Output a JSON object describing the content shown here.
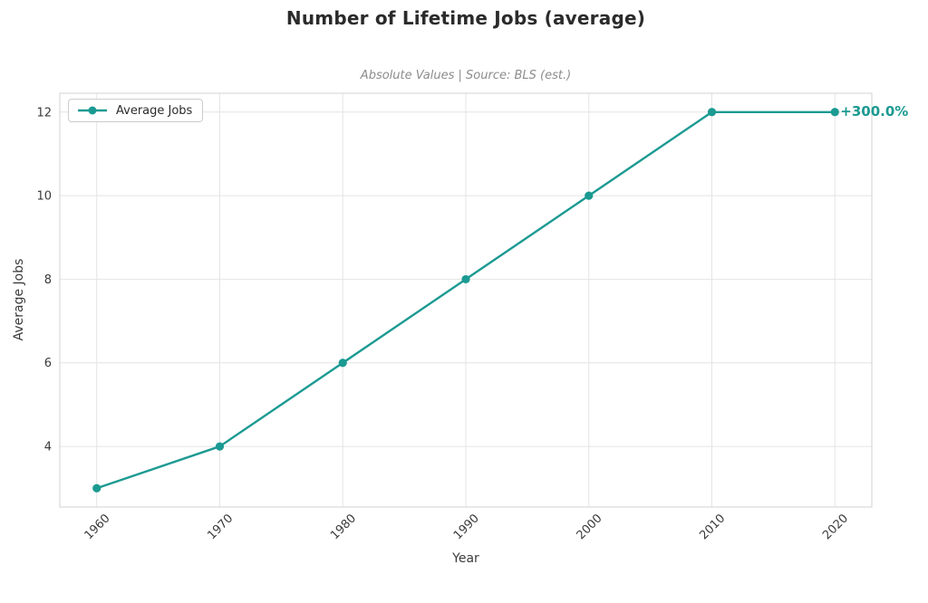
{
  "chart_data": {
    "type": "line",
    "title": "Number of Lifetime Jobs (average)",
    "subtitle": "Absolute Values | Source: BLS (est.)",
    "xlabel": "Year",
    "ylabel": "Average Jobs",
    "x": [
      1960,
      1970,
      1980,
      1990,
      2000,
      2010,
      2020
    ],
    "series": [
      {
        "name": "Average Jobs",
        "values": [
          3,
          4,
          6,
          8,
          10,
          12,
          12
        ],
        "color": "#1b9a92"
      }
    ],
    "xticks": [
      1960,
      1970,
      1980,
      1990,
      2000,
      2010,
      2020
    ],
    "yticks": [
      4,
      6,
      8,
      10,
      12
    ],
    "xlim": [
      1957,
      2023
    ],
    "ylim": [
      2.55,
      12.45
    ],
    "grid": true,
    "legend": {
      "position": "upper-left",
      "entries": [
        "Average Jobs"
      ]
    },
    "annotation": {
      "text": "+300.0%",
      "x": 2020,
      "y": 12,
      "color": "#1b9a92"
    }
  },
  "colors": {
    "line": "#1b9a92",
    "grid": "#e4e4e4",
    "spine": "#d8d8d8",
    "title": "#2b2b2b",
    "subtitle": "#8c8c8c",
    "tick": "#3a3a3a",
    "background": "#ffffff"
  }
}
